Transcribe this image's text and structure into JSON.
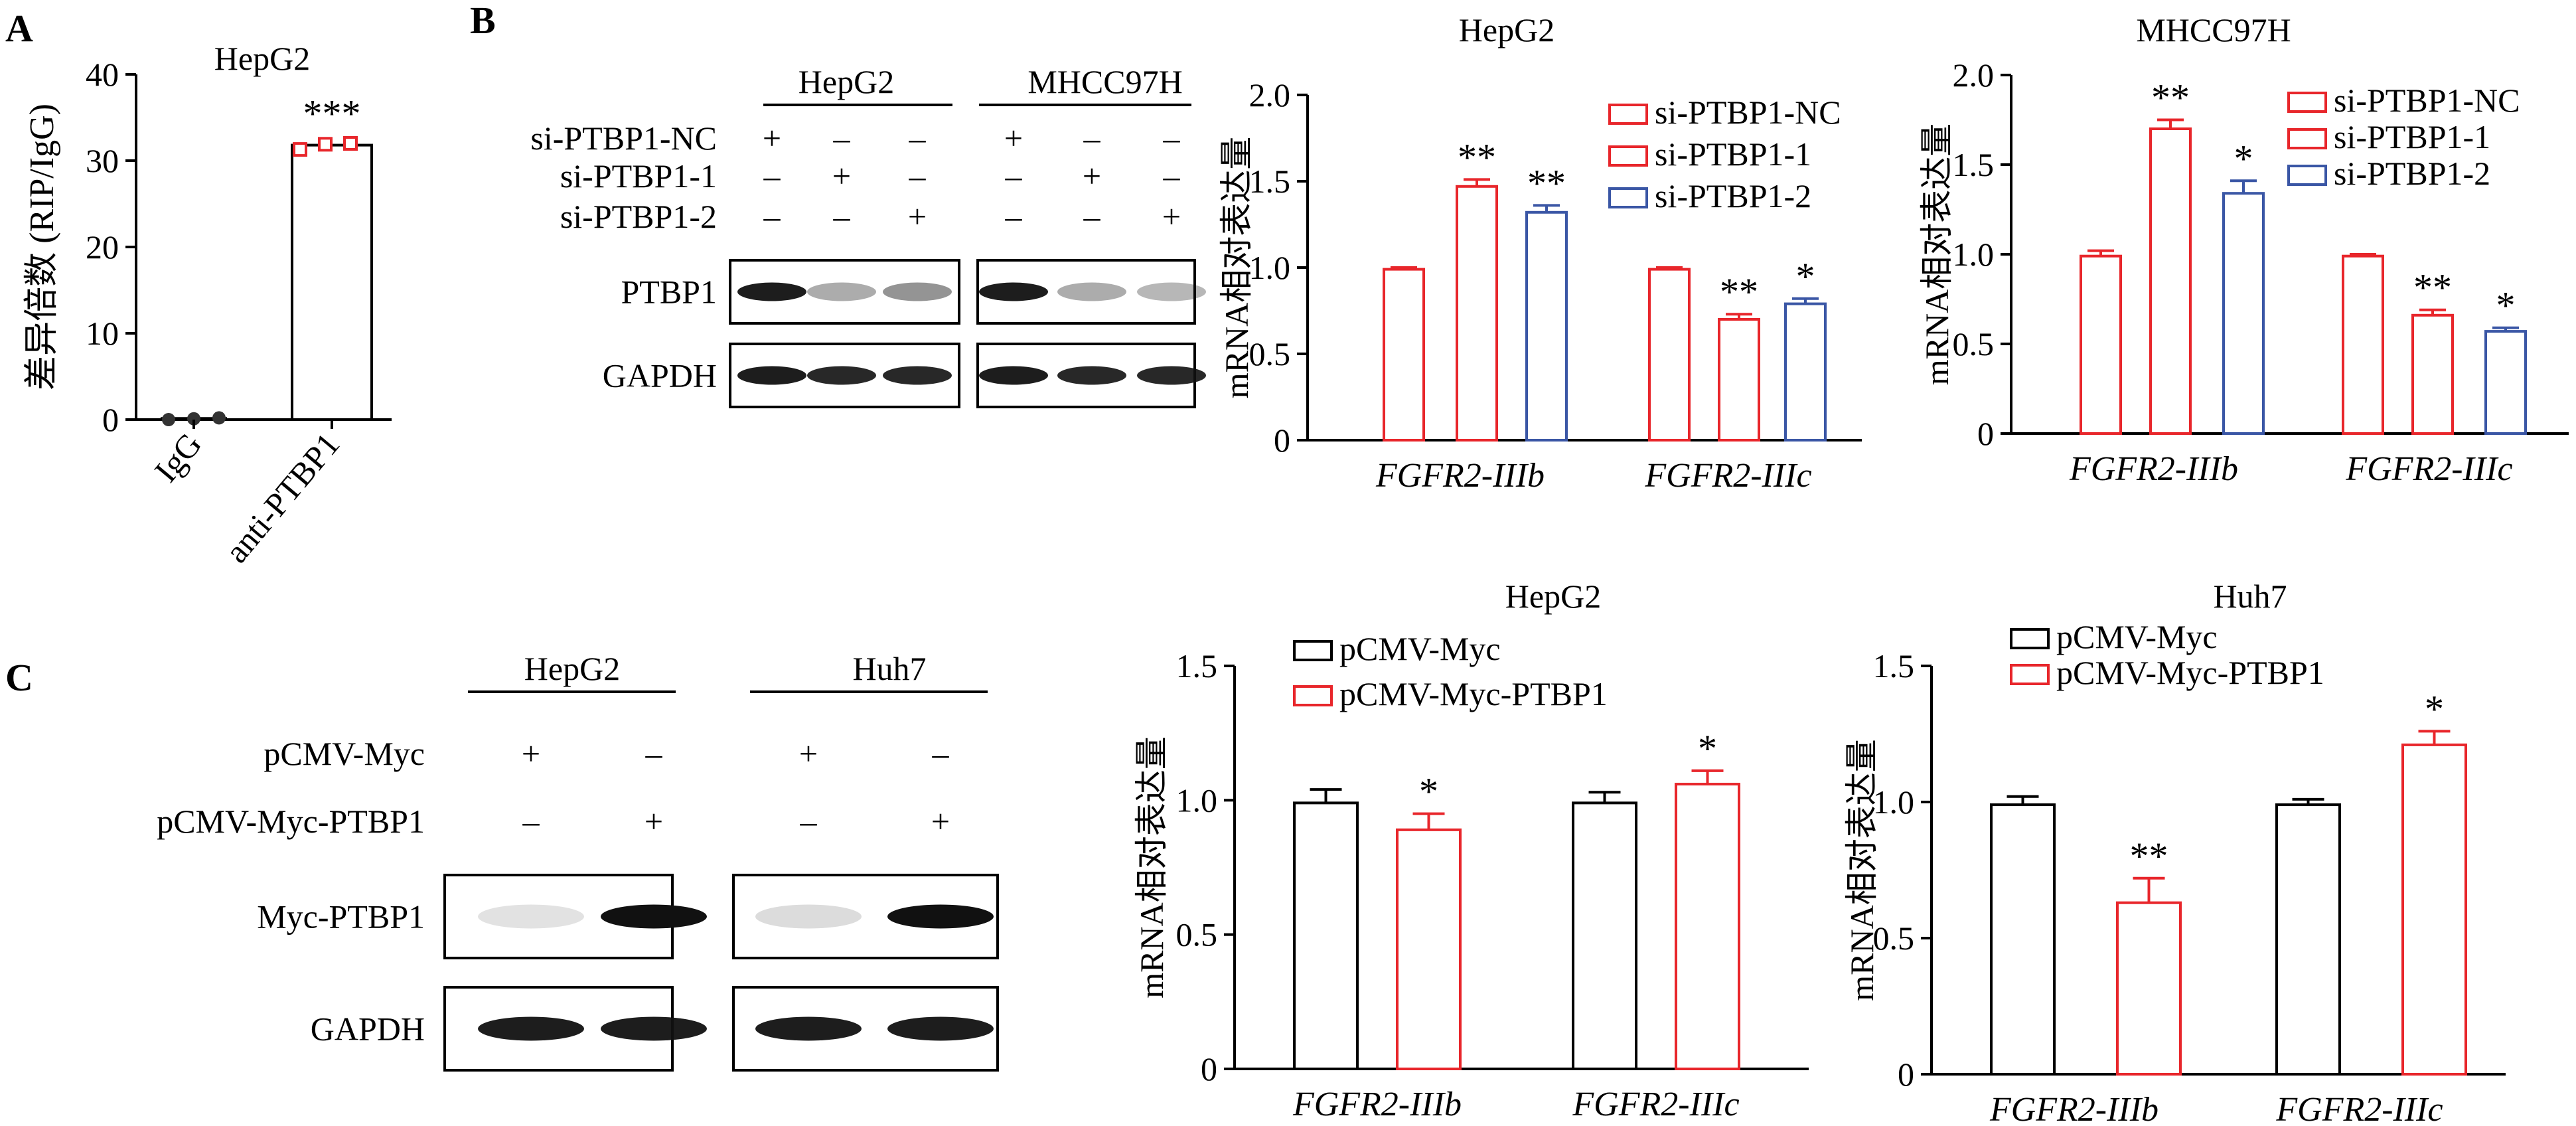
{
  "colors": {
    "black": "#000000",
    "red": "#e8262b",
    "blue": "#3a56a5"
  },
  "panel_labels": {
    "a": "A",
    "b": "B",
    "c": "C"
  },
  "wb_b": {
    "groups": [
      "HepG2",
      "MHCC97H"
    ],
    "rows": [
      {
        "label": "si-PTBP1-NC",
        "signs": [
          "+",
          "–",
          "–",
          "+",
          "–",
          "–"
        ]
      },
      {
        "label": "si-PTBP1-1",
        "signs": [
          "–",
          "+",
          "–",
          "–",
          "+",
          "–"
        ]
      },
      {
        "label": "si-PTBP1-2",
        "signs": [
          "–",
          "–",
          "+",
          "–",
          "–",
          "+"
        ]
      }
    ],
    "bands": [
      "PTBP1",
      "GAPDH"
    ]
  },
  "wb_c": {
    "groups": [
      "HepG2",
      "Huh7"
    ],
    "rows": [
      {
        "label": "pCMV-Myc",
        "signs": [
          "+",
          "–",
          "+",
          "–"
        ]
      },
      {
        "label": "pCMV-Myc-PTBP1",
        "signs": [
          "–",
          "+",
          "–",
          "+"
        ]
      }
    ],
    "bands": [
      "Myc-PTBP1",
      "GAPDH"
    ]
  },
  "chart_data": [
    {
      "id": "A",
      "type": "bar",
      "title": "HepG2",
      "ylabel": "差异倍数 (RIP/IgG)",
      "ylim": [
        0,
        40
      ],
      "yticks": [
        "0",
        "10",
        "20",
        "30",
        "40"
      ],
      "categories": [
        "IgG",
        "anti-PTBP1"
      ],
      "values": [
        0.1,
        31.8
      ],
      "points": [
        [
          0.0,
          0.1,
          0.2
        ],
        [
          31.3,
          31.9,
          32.0
        ]
      ],
      "significance": [
        "",
        "***"
      ]
    },
    {
      "id": "B1",
      "type": "bar",
      "title": "HepG2",
      "ylabel": "mRNA相对表达量",
      "ylim": [
        0,
        2.0
      ],
      "yticks": [
        "0",
        "0.5",
        "1.0",
        "1.5",
        "2.0"
      ],
      "categories": [
        "FGFR2-IIIb",
        "FGFR2-IIIc"
      ],
      "series": [
        {
          "name": "si-PTBP1-NC",
          "values": [
            0.99,
            0.99
          ],
          "errors": [
            0.01,
            0.01
          ],
          "sig": [
            "",
            ""
          ]
        },
        {
          "name": "si-PTBP1-1",
          "values": [
            1.47,
            0.7
          ],
          "errors": [
            0.04,
            0.03
          ],
          "sig": [
            "**",
            "**"
          ]
        },
        {
          "name": "si-PTBP1-2",
          "values": [
            1.32,
            0.79
          ],
          "errors": [
            0.04,
            0.03
          ],
          "sig": [
            "**",
            "*"
          ]
        }
      ],
      "legend": "top-right"
    },
    {
      "id": "B2",
      "type": "bar",
      "title": "MHCC97H",
      "ylabel": "mRNA相对表达量",
      "ylim": [
        0,
        2.0
      ],
      "yticks": [
        "0",
        "0.5",
        "1.0",
        "1.5",
        "2.0"
      ],
      "categories": [
        "FGFR2-IIIb",
        "FGFR2-IIIc"
      ],
      "series": [
        {
          "name": "si-PTBP1-NC",
          "values": [
            0.99,
            0.99
          ],
          "errors": [
            0.03,
            0.01
          ],
          "sig": [
            "",
            ""
          ]
        },
        {
          "name": "si-PTBP1-1",
          "values": [
            1.7,
            0.66
          ],
          "errors": [
            0.05,
            0.03
          ],
          "sig": [
            "**",
            "**"
          ]
        },
        {
          "name": "si-PTBP1-2",
          "values": [
            1.34,
            0.57
          ],
          "errors": [
            0.07,
            0.02
          ],
          "sig": [
            "*",
            "*"
          ]
        }
      ],
      "legend": "top-right"
    },
    {
      "id": "C1",
      "type": "bar",
      "title": "HepG2",
      "ylabel": "mRNA相对表达量",
      "ylim": [
        0,
        1.5
      ],
      "yticks": [
        "0",
        "0.5",
        "1.0",
        "1.5"
      ],
      "categories": [
        "FGFR2-IIIb",
        "FGFR2-IIIc"
      ],
      "series": [
        {
          "name": "pCMV-Myc",
          "values": [
            0.99,
            0.99
          ],
          "errors": [
            0.05,
            0.04
          ],
          "sig": [
            "",
            ""
          ]
        },
        {
          "name": "pCMV-Myc-PTBP1",
          "values": [
            0.89,
            1.06
          ],
          "errors": [
            0.06,
            0.05
          ],
          "sig": [
            "*",
            "*"
          ]
        }
      ],
      "legend": "top-left"
    },
    {
      "id": "C2",
      "type": "bar",
      "title": "Huh7",
      "ylabel": "mRNA相对表达量",
      "ylim": [
        0,
        1.5
      ],
      "yticks": [
        "0",
        "0.5",
        "1.0",
        "1.5"
      ],
      "categories": [
        "FGFR2-IIIb",
        "FGFR2-IIIc"
      ],
      "series": [
        {
          "name": "pCMV-Myc",
          "values": [
            0.99,
            0.99
          ],
          "errors": [
            0.03,
            0.02
          ],
          "sig": [
            "",
            ""
          ]
        },
        {
          "name": "pCMV-Myc-PTBP1",
          "values": [
            0.63,
            1.21
          ],
          "errors": [
            0.09,
            0.05
          ],
          "sig": [
            "**",
            "*"
          ]
        }
      ],
      "legend": "top-left"
    }
  ]
}
